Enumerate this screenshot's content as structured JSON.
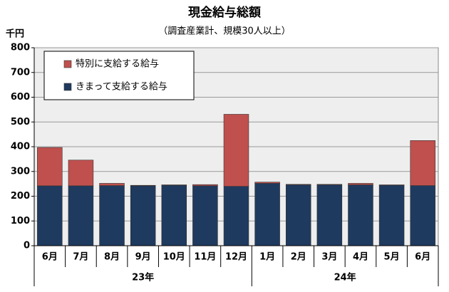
{
  "chart_data": {
    "type": "stacked_bar",
    "title": "現金給与総額",
    "subtitle": "（調査産業計、規模30人以上）",
    "y_unit": "千円",
    "groups": [
      {
        "label": "23年",
        "categories": [
          "6月",
          "7月",
          "8月",
          "9月",
          "10月",
          "11月",
          "12月"
        ]
      },
      {
        "label": "24年",
        "categories": [
          "1月",
          "2月",
          "3月",
          "4月",
          "5月",
          "6月"
        ]
      }
    ],
    "series": [
      {
        "name": "きまって支給する給与",
        "color": "#1f3a5f",
        "values": [
          242,
          242,
          243,
          242,
          244,
          242,
          240,
          252,
          246,
          246,
          246,
          244,
          243
        ]
      },
      {
        "name": "特別に支給する給与",
        "color": "#c0504d",
        "values": [
          155,
          104,
          9,
          2,
          2,
          5,
          291,
          5,
          2,
          2,
          6,
          2,
          182
        ]
      }
    ],
    "ylim": [
      0,
      800
    ],
    "yticks": [
      0,
      100,
      200,
      300,
      400,
      500,
      600,
      700,
      800
    ],
    "grid": true,
    "legend": "upper left"
  }
}
